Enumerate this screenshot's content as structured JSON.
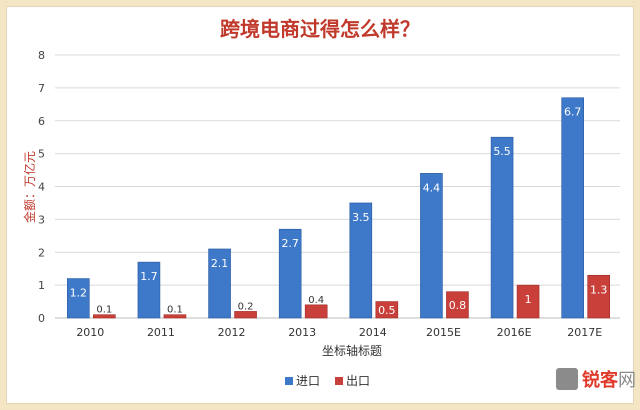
{
  "chart_data": {
    "type": "bar",
    "title": "跨境电商过得怎么样？",
    "xlabel": "坐标轴标题",
    "ylabel": "金额：万亿元",
    "categories": [
      "2010",
      "2011",
      "2012",
      "2013",
      "2014",
      "2015E",
      "2016E",
      "2017E"
    ],
    "ylim": [
      0,
      8
    ],
    "yticks": [
      0,
      1,
      2,
      3,
      4,
      5,
      6,
      7,
      8
    ],
    "grid": true,
    "legend_position": "bottom",
    "series": [
      {
        "name": "进口",
        "color": "#3d78c9",
        "values": [
          1.2,
          1.7,
          2.1,
          2.7,
          3.5,
          4.4,
          5.5,
          6.7
        ],
        "labels": [
          "1.2",
          "1.7",
          "2.1",
          "2.7",
          "3.5",
          "4.4",
          "5.5",
          "6.7"
        ]
      },
      {
        "name": "出口",
        "color": "#c9403a",
        "values": [
          0.1,
          0.1,
          0.2,
          0.4,
          0.5,
          0.8,
          1,
          1.3
        ],
        "labels": [
          "0.1",
          "0.1",
          "0.2",
          "0.4",
          "0.5",
          "0.8",
          "1",
          "1.3"
        ]
      }
    ]
  },
  "watermark": {
    "brand_red": "锐客",
    "brand_grey": "网"
  }
}
